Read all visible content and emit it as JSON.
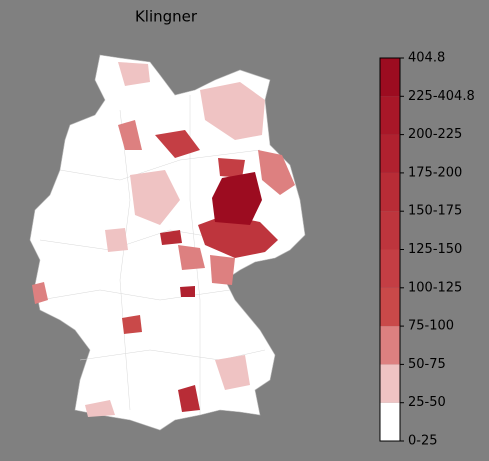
{
  "title": "Klingner",
  "colorbar": {
    "labels": [
      "0-25",
      "25-50",
      "50-75",
      "75-100",
      "100-125",
      "125-150",
      "150-175",
      "175-200",
      "200-225",
      "225-404.8",
      "404.8"
    ],
    "colors": [
      "#ffffff",
      "#efc3c3",
      "#dd8080",
      "#c94949",
      "#c43e44",
      "#be353d",
      "#b82c36",
      "#b0212f",
      "#a81728",
      "#9c0c20"
    ]
  }
}
